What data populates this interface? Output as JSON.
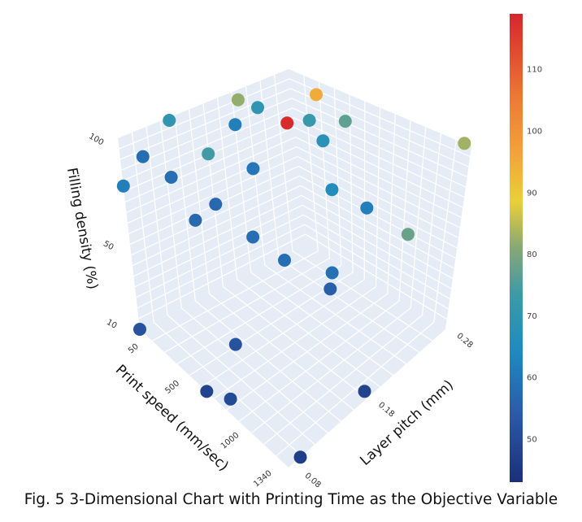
{
  "caption": "Fig. 5 3-Dimensional Chart with Printing Time as the Objective Variable",
  "chart_data": {
    "type": "scatter3d",
    "title": "",
    "axes": {
      "x": {
        "label": "Print speed (mm/sec)",
        "range": [
          50,
          1340
        ],
        "ticks": [
          50,
          500,
          1000,
          1340
        ]
      },
      "y": {
        "label": "Layer pitch (mm)",
        "range": [
          0.08,
          0.28
        ],
        "ticks": [
          0.08,
          0.18,
          0.28
        ]
      },
      "z": {
        "label": "Filling density (%)",
        "range": [
          10,
          100
        ],
        "ticks": [
          10,
          50,
          100
        ]
      }
    },
    "colorbar": {
      "range": [
        43,
        119
      ],
      "ticks": [
        50,
        60,
        70,
        80,
        90,
        100,
        110
      ],
      "placement": "right"
    },
    "colorscale": [
      [
        0.0,
        "#1b2f7a"
      ],
      [
        0.15,
        "#2a5ca8"
      ],
      [
        0.28,
        "#1f8ac0"
      ],
      [
        0.4,
        "#3c9aa8"
      ],
      [
        0.5,
        "#86a874"
      ],
      [
        0.6,
        "#eccf38"
      ],
      [
        0.7,
        "#f2a43a"
      ],
      [
        0.82,
        "#ec7a35"
      ],
      [
        1.0,
        "#d6262b"
      ]
    ],
    "grid": true,
    "points": [
      {
        "speed": 130,
        "pitch": 0.208,
        "density": 100,
        "time": 82
      },
      {
        "speed": 356,
        "pitch": 0.262,
        "density": 100,
        "time": 95
      },
      {
        "speed": 254,
        "pitch": 0.211,
        "density": 100,
        "time": 70
      },
      {
        "speed": 71,
        "pitch": 0.137,
        "density": 100,
        "time": 70
      },
      {
        "speed": 305,
        "pitch": 0.177,
        "density": 100,
        "time": 62
      },
      {
        "speed": 468,
        "pitch": 0.211,
        "density": 100,
        "time": 118
      },
      {
        "speed": 527,
        "pitch": 0.227,
        "density": 100,
        "time": 72
      },
      {
        "speed": 664,
        "pitch": 0.246,
        "density": 100,
        "time": 77
      },
      {
        "speed": 723,
        "pitch": 0.212,
        "density": 100,
        "time": 68
      },
      {
        "speed": 1290,
        "pitch": 0.28,
        "density": 100,
        "time": 83
      },
      {
        "speed": 244,
        "pitch": 0.08,
        "density": 100,
        "time": 58
      },
      {
        "speed": 424,
        "pitch": 0.128,
        "density": 100,
        "time": 74
      },
      {
        "speed": 669,
        "pitch": 0.142,
        "density": 100,
        "time": 60
      },
      {
        "speed": 463,
        "pitch": 0.08,
        "density": 100,
        "time": 58
      },
      {
        "speed": 50,
        "pitch": 0.08,
        "density": 77.5,
        "time": 62
      },
      {
        "speed": 772,
        "pitch": 0.085,
        "density": 100,
        "time": 57
      },
      {
        "speed": 1082,
        "pitch": 0.168,
        "density": 100,
        "time": 66
      },
      {
        "speed": 1327,
        "pitch": 0.17,
        "density": 100,
        "time": 62
      },
      {
        "speed": 553,
        "pitch": 0.091,
        "density": 82,
        "time": 57
      },
      {
        "speed": 1095,
        "pitch": 0.08,
        "density": 100,
        "time": 58
      },
      {
        "speed": 1198,
        "pitch": 0.24,
        "density": 64,
        "time": 78
      },
      {
        "speed": 1340,
        "pitch": 0.08,
        "density": 100,
        "time": 58
      },
      {
        "speed": 1121,
        "pitch": 0.164,
        "density": 64,
        "time": 59
      },
      {
        "speed": 1095,
        "pitch": 0.166,
        "density": 55,
        "time": 55
      },
      {
        "speed": 50,
        "pitch": 0.08,
        "density": 10,
        "time": 52
      },
      {
        "speed": 469,
        "pitch": 0.138,
        "density": 10,
        "time": 52
      },
      {
        "speed": 630,
        "pitch": 0.08,
        "density": 10,
        "time": 48
      },
      {
        "speed": 760,
        "pitch": 0.091,
        "density": 10,
        "time": 50
      },
      {
        "speed": 1290,
        "pitch": 0.184,
        "density": 10,
        "time": 48
      },
      {
        "speed": 1340,
        "pitch": 0.095,
        "density": 10,
        "time": 47
      }
    ]
  }
}
